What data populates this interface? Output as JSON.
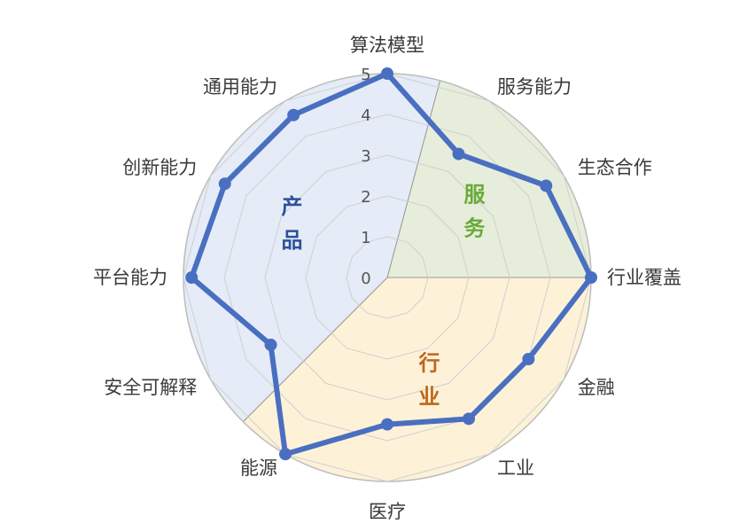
{
  "chart_data": {
    "type": "radar",
    "title": "",
    "rmax": 5,
    "ticks": [
      "0",
      "1",
      "2",
      "3",
      "4",
      "5"
    ],
    "grid": true,
    "axes": [
      "算法模型",
      "服务能力",
      "生态合作",
      "行业覆盖",
      "金融",
      "工业",
      "医疗",
      "能源",
      "安全可解释",
      "平台能力",
      "创新能力",
      "通用能力"
    ],
    "series": [
      {
        "values": [
          5.0,
          3.5,
          4.5,
          5.0,
          4.0,
          4.0,
          3.6,
          5.0,
          3.3,
          4.8,
          4.6,
          4.6
        ]
      }
    ],
    "sectors": [
      {
        "label_chars": [
          "服",
          "务"
        ],
        "start_index": 0.5,
        "end_index": 3,
        "fill": "#e6eedb",
        "text_color": "#6aaa3a"
      },
      {
        "label_chars": [
          "行",
          "业"
        ],
        "start_index": 3,
        "end_index": 7.5,
        "fill": "#fdf2d8",
        "text_color": "#c0661e"
      },
      {
        "label_chars": [
          "产",
          "品"
        ],
        "start_index": 7.5,
        "end_index": 12.5,
        "fill": "#e5ecf7",
        "text_color": "#2f4f9a"
      }
    ],
    "colors": {
      "line": "#4a6fc1",
      "grid": "#cfcfcf",
      "frame": "#bdbdbd"
    }
  }
}
